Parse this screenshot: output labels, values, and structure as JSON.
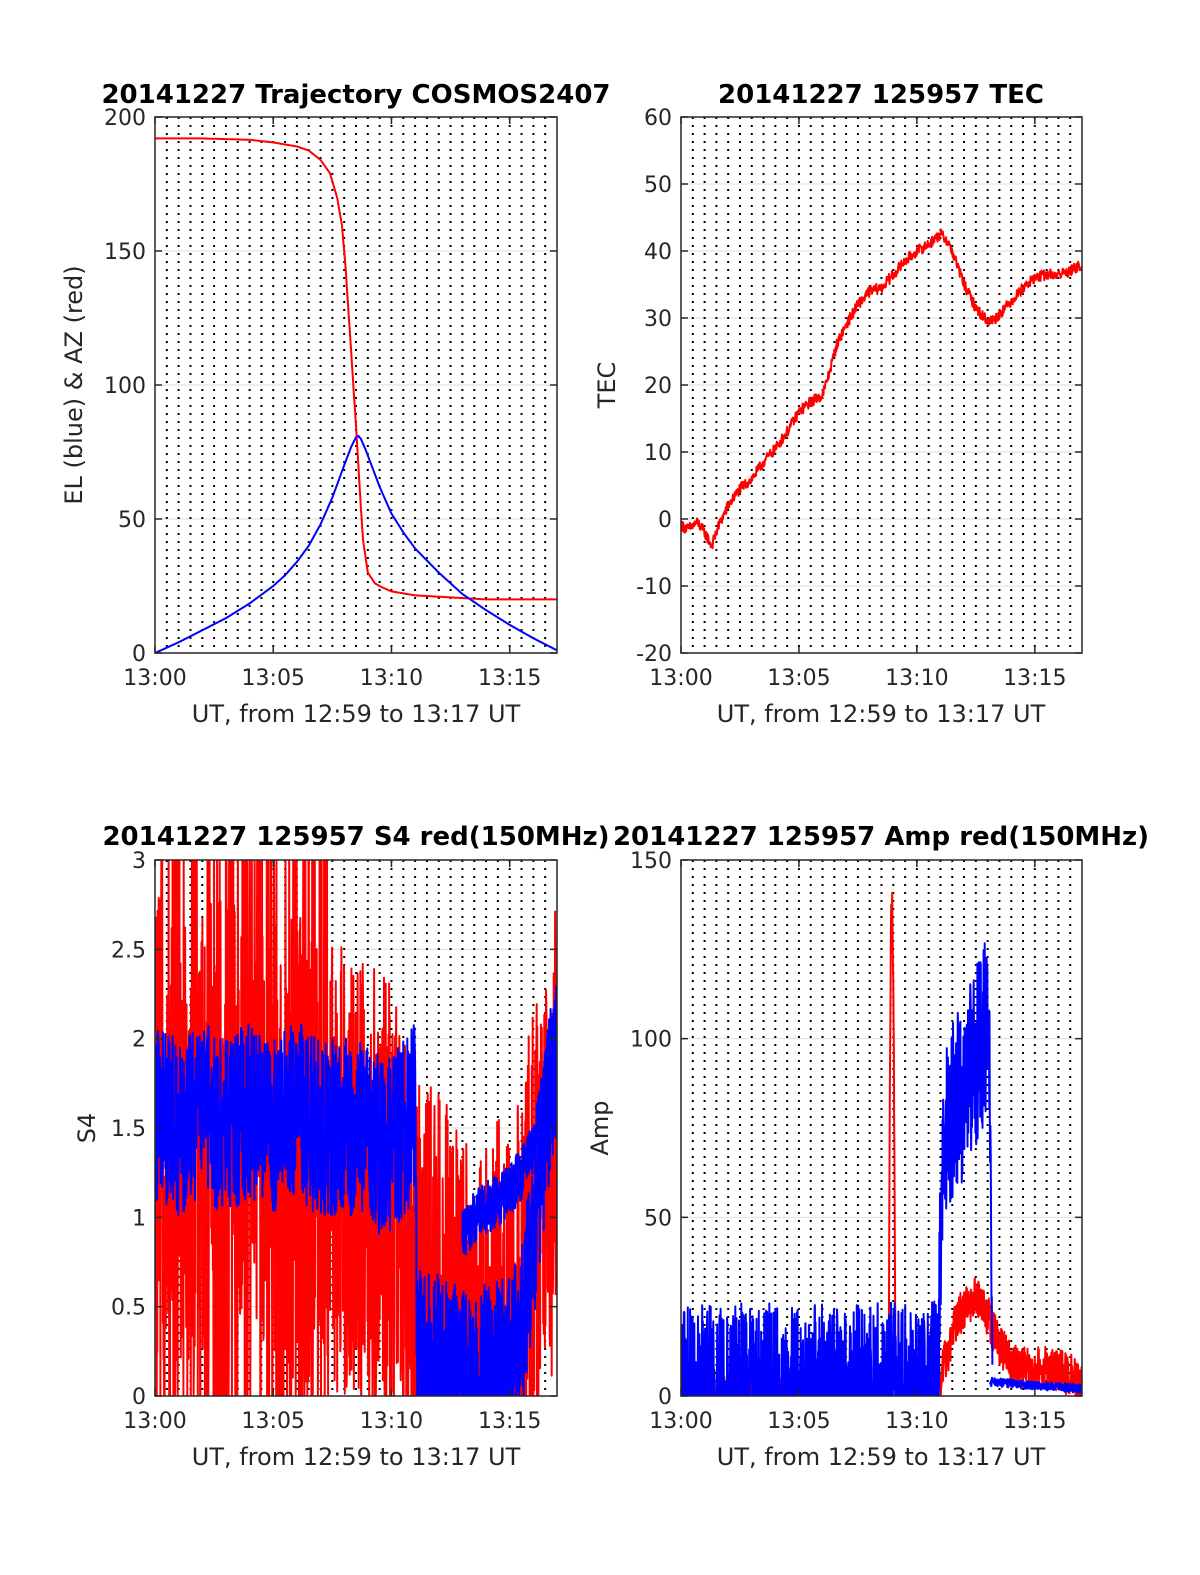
{
  "chart_data": [
    {
      "type": "line",
      "title": "20141227 Trajectory COSMOS2407",
      "xlabel": "UT, from 12:59 to 13:17 UT",
      "ylabel": "EL (blue) & AZ (red)",
      "x_unit": "minutes after 13:00 UT",
      "xlim": [
        0,
        17
      ],
      "ylim": [
        0,
        200
      ],
      "xticks": [
        0,
        5,
        10,
        15
      ],
      "xtick_labels": [
        "13:00",
        "13:05",
        "13:10",
        "13:15"
      ],
      "yticks": [
        0,
        50,
        100,
        150,
        200
      ],
      "ytick_labels": [
        "0",
        "50",
        "100",
        "150",
        "200"
      ],
      "grid": "dotted vertical every 0.5 min, faint horizontal at y ticks",
      "series": [
        {
          "color": "#ff0000",
          "noise": 0,
          "x": [
            0,
            2,
            4,
            5,
            6,
            6.5,
            7,
            7.4,
            7.7,
            7.9,
            8.05,
            8.2,
            8.3,
            8.4,
            8.5,
            8.6,
            8.7,
            8.8,
            9.0,
            9.3,
            9.6,
            10,
            11,
            12,
            13,
            14,
            15,
            16,
            17
          ],
          "y": [
            192,
            192,
            191.5,
            190.5,
            189,
            187.5,
            184,
            179,
            170,
            160,
            145,
            125,
            112,
            98,
            85,
            70,
            55,
            42,
            30,
            26,
            24.5,
            23,
            21.5,
            21,
            20.5,
            20,
            20,
            20,
            20
          ]
        },
        {
          "color": "#0000ff",
          "noise": 0,
          "x": [
            0,
            1,
            2,
            3,
            4,
            5,
            5.5,
            6,
            6.5,
            7,
            7.5,
            8,
            8.3,
            8.5,
            8.6,
            8.7,
            8.9,
            9.2,
            9.5,
            10,
            10.5,
            11,
            12,
            13,
            14,
            15,
            16,
            17
          ],
          "y": [
            0,
            4,
            8.5,
            13,
            18.5,
            25,
            29,
            34,
            40,
            48,
            58,
            70,
            77,
            80.5,
            81,
            80,
            76,
            69,
            62,
            52,
            45,
            39,
            30,
            22,
            16,
            10.5,
            5.5,
            1
          ]
        }
      ]
    },
    {
      "type": "line",
      "title": "20141227 125957 TEC",
      "xlabel": "UT, from 12:59 to 13:17 UT",
      "ylabel": "TEC",
      "x_unit": "minutes after 13:00 UT",
      "xlim": [
        0,
        17
      ],
      "ylim": [
        -20,
        60
      ],
      "xticks": [
        0,
        5,
        10,
        15
      ],
      "xtick_labels": [
        "13:00",
        "13:05",
        "13:10",
        "13:15"
      ],
      "yticks": [
        -20,
        -10,
        0,
        10,
        20,
        30,
        40,
        50,
        60
      ],
      "ytick_labels": [
        "-20",
        "-10",
        "0",
        "10",
        "20",
        "30",
        "40",
        "50",
        "60"
      ],
      "grid": "dotted vertical every 0.5 min, faint horizontal at y ticks",
      "series": [
        {
          "color": "#ff0000",
          "noise": 0.8,
          "x": [
            0,
            0.3,
            0.7,
            1.0,
            1.3,
            1.6,
            2.0,
            2.5,
            3.0,
            3.5,
            4.0,
            4.5,
            5.0,
            5.5,
            6.0,
            6.3,
            6.6,
            7.0,
            7.5,
            8.0,
            8.5,
            9.0,
            9.5,
            10.0,
            10.5,
            11.0,
            11.3,
            11.6,
            12.0,
            12.5,
            13.0,
            13.3,
            13.6,
            14.0,
            14.5,
            15.0,
            15.5,
            16.0,
            16.5,
            17.0
          ],
          "y": [
            -1,
            -1.5,
            -0.5,
            -2,
            -4,
            -1,
            2,
            4.5,
            6,
            8.5,
            10.5,
            13,
            16,
            17.5,
            18.5,
            22,
            26,
            29,
            32,
            34,
            34.5,
            36.5,
            38.5,
            40,
            41,
            42.5,
            41.5,
            39,
            35,
            31.5,
            29.5,
            29.8,
            31,
            32.5,
            34.5,
            36,
            36.5,
            36.5,
            37,
            38
          ]
        }
      ]
    },
    {
      "type": "line",
      "title": "20141227 125957 S4 red(150MHz)",
      "xlabel": "UT, from 12:59 to 13:17 UT",
      "ylabel": "S4",
      "x_unit": "minutes after 13:00 UT",
      "xlim": [
        0,
        17
      ],
      "ylim": [
        0,
        3
      ],
      "xticks": [
        0,
        5,
        10,
        15
      ],
      "xtick_labels": [
        "13:00",
        "13:05",
        "13:10",
        "13:15"
      ],
      "yticks": [
        0,
        0.5,
        1,
        1.5,
        2,
        2.5,
        3
      ],
      "ytick_labels": [
        "0",
        "0.5",
        "1",
        "1.5",
        "2",
        "2.5",
        "3"
      ],
      "grid": "dotted vertical every 0.5 min, faint horizontal at y ticks",
      "series": [
        {
          "color": "#ff0000",
          "noise": 1.3,
          "x": [
            0,
            1,
            2,
            3,
            4,
            5,
            6,
            7,
            7.5,
            8,
            8.5,
            9,
            9.5,
            10,
            10.5,
            11,
            11.5,
            12,
            12.5,
            13,
            13.5,
            14,
            14.5,
            15,
            15.5,
            16,
            16.5,
            17
          ],
          "y": [
            1.5,
            1.5,
            1.5,
            1.5,
            1.5,
            1.4,
            1.4,
            1.3,
            1.3,
            1.3,
            1.2,
            1.1,
            1.1,
            1.0,
            0.9,
            0.5,
            0.4,
            0.5,
            0.3,
            0.2,
            0.2,
            0.2,
            0.25,
            0.3,
            0.5,
            0.9,
            1.3,
            1.5
          ]
        },
        {
          "color": "#0000ff",
          "noise": 0.5,
          "x": [
            0,
            1,
            2,
            3,
            4,
            5,
            6,
            7,
            8,
            9,
            9.5,
            10,
            10.5,
            11.0,
            11.1,
            11.5,
            12,
            12.5,
            13,
            13.5,
            14,
            14.5,
            15,
            15.5,
            16,
            16.5,
            17
          ],
          "y": [
            1.6,
            1.5,
            1.6,
            1.5,
            1.6,
            1.5,
            1.6,
            1.5,
            1.5,
            1.5,
            1.4,
            1.4,
            1.5,
            1.6,
            0.22,
            0.2,
            0.18,
            0.15,
            0.14,
            0.14,
            0.14,
            0.15,
            0.2,
            0.4,
            0.9,
            1.5,
            2.0
          ]
        },
        {
          "color": "#0000ff",
          "noise": 0.15,
          "x": [
            13.0,
            13.5,
            14.0,
            14.5,
            15.0,
            15.5,
            16.0,
            16.3,
            16.6,
            17.0
          ],
          "y": [
            0.9,
            1.0,
            1.05,
            1.1,
            1.15,
            1.25,
            1.4,
            1.6,
            1.9,
            2.1
          ]
        }
      ]
    },
    {
      "type": "line",
      "title": "20141227 125957 Amp red(150MHz)",
      "xlabel": "UT, from 12:59 to 13:17 UT",
      "ylabel": "Amp",
      "x_unit": "minutes after 13:00 UT",
      "xlim": [
        0,
        17
      ],
      "ylim": [
        0,
        150
      ],
      "xticks": [
        0,
        5,
        10,
        15
      ],
      "xtick_labels": [
        "13:00",
        "13:05",
        "13:10",
        "13:15"
      ],
      "yticks": [
        0,
        50,
        100,
        150
      ],
      "ytick_labels": [
        "0",
        "50",
        "100",
        "150"
      ],
      "grid": "dotted vertical every 0.5 min, faint horizontal at y ticks",
      "series": [
        {
          "color": "#ff0000",
          "noise": 6,
          "x": [
            0,
            8.8,
            8.85,
            8.9,
            8.95,
            9.0,
            9.05,
            9.1,
            9.2,
            10.8,
            11.0,
            11.1,
            11.3,
            11.6,
            12.0,
            12.5,
            13.0,
            13.5,
            14.0,
            14.5,
            15.0,
            15.5,
            16.0,
            16.5,
            16.8,
            17.0
          ],
          "y": [
            0,
            0,
            80,
            130,
            138,
            120,
            60,
            2,
            0,
            0,
            1,
            8,
            12,
            20,
            25,
            28,
            22,
            14,
            9,
            8,
            8,
            8,
            7,
            6,
            4,
            2
          ]
        },
        {
          "color": "#0000ff",
          "noise": 25,
          "x": [
            0,
            10.5,
            10.9,
            11.0,
            11.2,
            11.5,
            12.0,
            12.5,
            12.8,
            13.0,
            13.1,
            13.2
          ],
          "y": [
            1,
            1.5,
            5,
            45,
            75,
            80,
            85,
            95,
            100,
            105,
            80,
            5
          ]
        },
        {
          "color": "#0000ff",
          "noise": 1.2,
          "x": [
            13.1,
            14,
            15,
            16,
            17
          ],
          "y": [
            4,
            3.5,
            3,
            2.5,
            2
          ]
        }
      ]
    }
  ]
}
